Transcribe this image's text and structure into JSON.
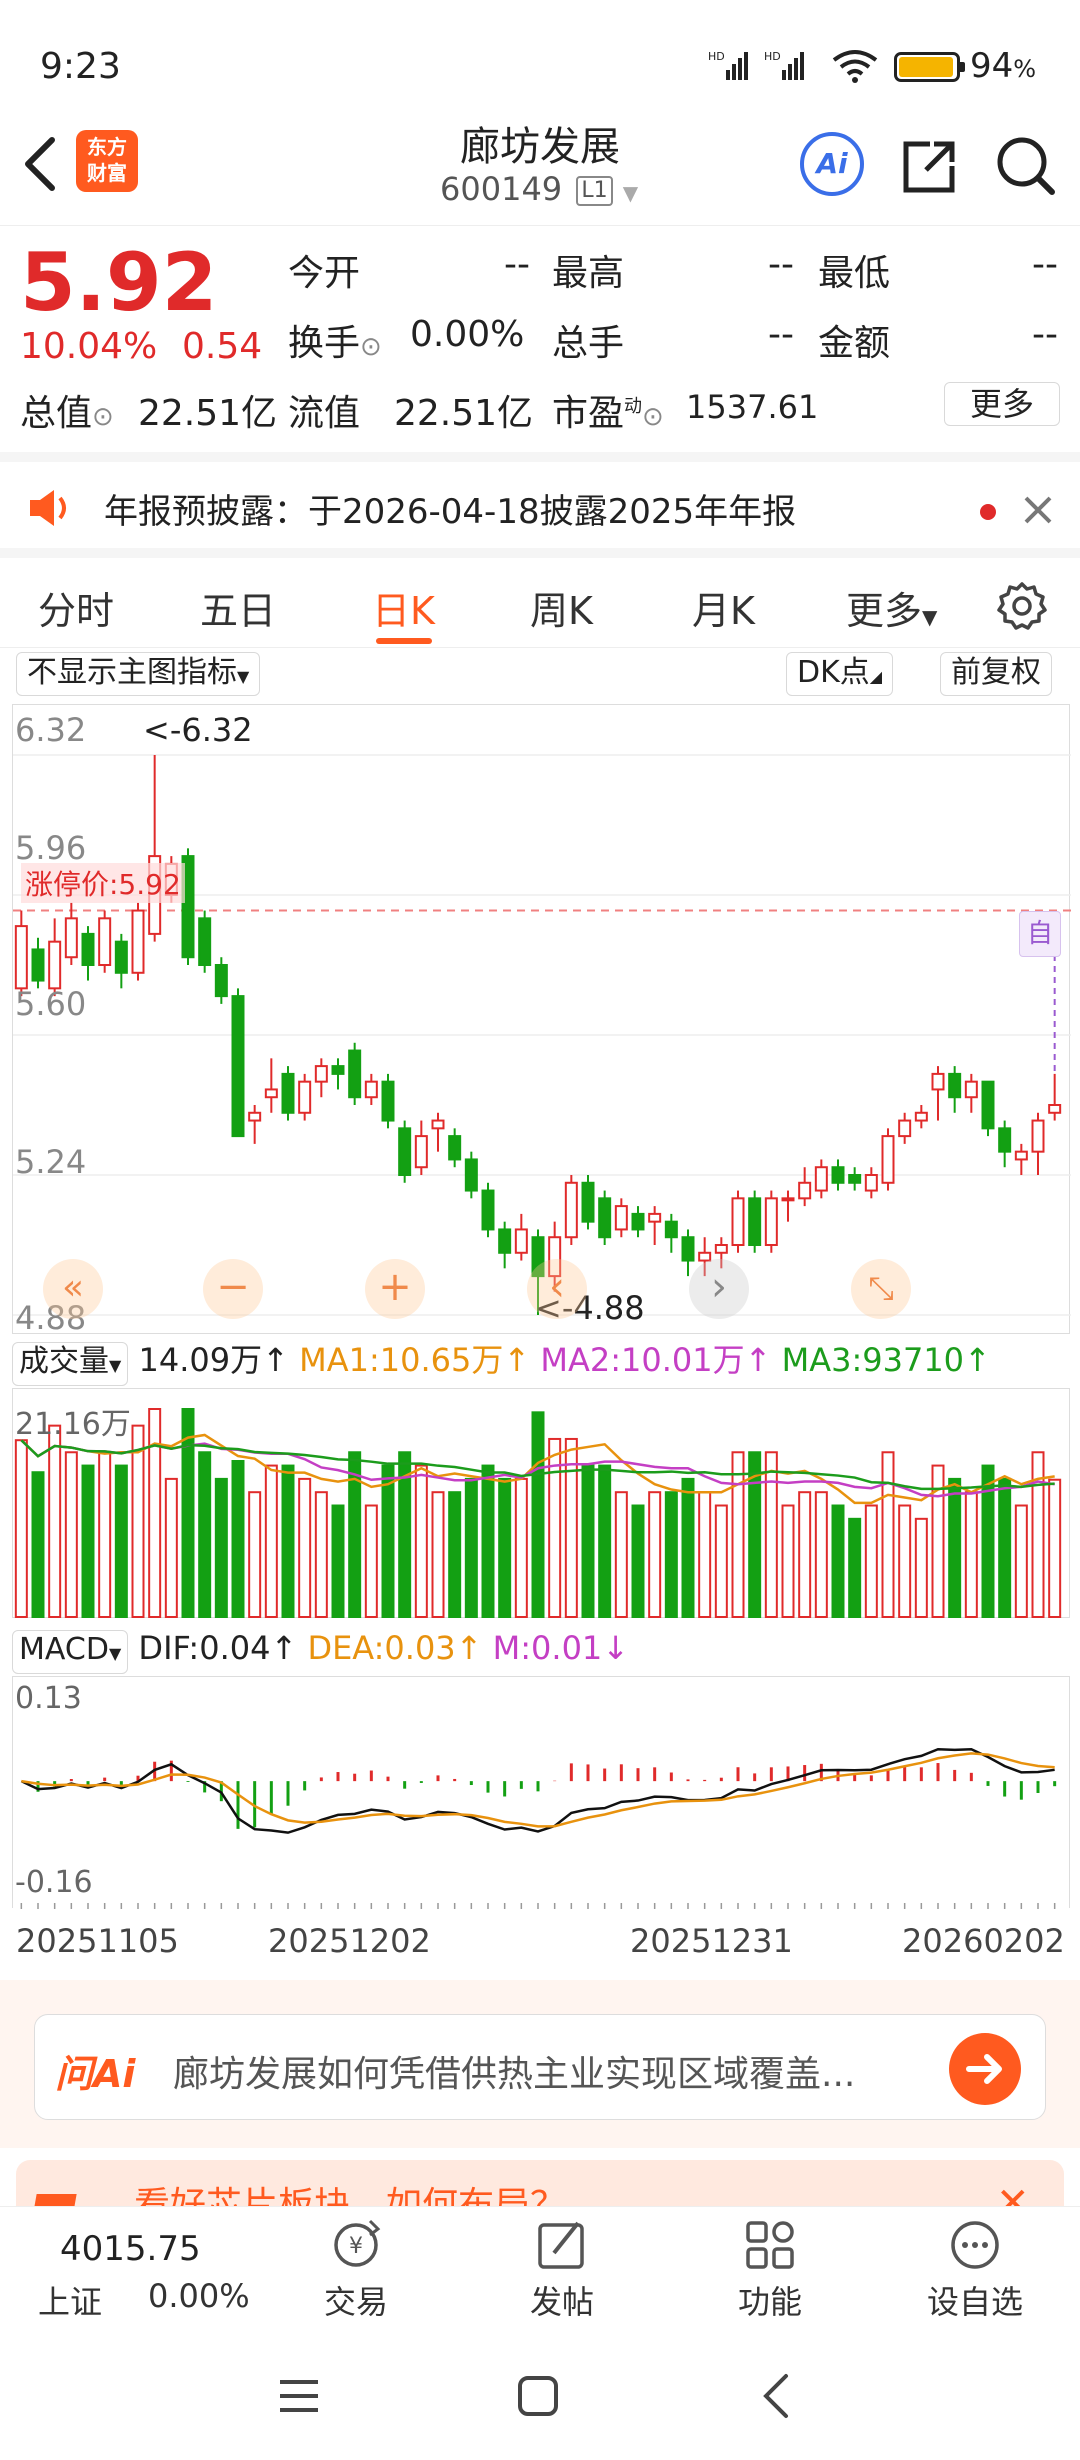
{
  "status_bar": {
    "time": "9:23",
    "battery": "94",
    "battery_pct_sign": "%"
  },
  "header": {
    "back": "‹",
    "logo_line1": "东方",
    "logo_line2": "财富",
    "title": "廊坊发展",
    "code": "600149",
    "level": "L1",
    "ai_label": "Ai"
  },
  "quote": {
    "price": "5.92",
    "change_pct": "10.04%",
    "change_abs": "0.54",
    "fields": [
      {
        "label": "今开",
        "value": "--"
      },
      {
        "label": "最高",
        "value": "--"
      },
      {
        "label": "最低",
        "value": "--"
      },
      {
        "label": "换手",
        "value": "0.00%"
      },
      {
        "label": "总手",
        "value": "--"
      },
      {
        "label": "金额",
        "value": "--"
      }
    ],
    "total_mv_label": "总值",
    "total_mv": "22.51亿",
    "float_mv_label": "流值",
    "float_mv": "22.51亿",
    "pe_label": "市盈",
    "pe_sup": "动",
    "pe_value": "1537.61",
    "more": "更多"
  },
  "notice": {
    "text": "年报预披露：于2026-04-18披露2025年年报"
  },
  "tabs": [
    {
      "label": "分时"
    },
    {
      "label": "五日"
    },
    {
      "label": "日K",
      "active": true
    },
    {
      "label": "周K"
    },
    {
      "label": "月K"
    },
    {
      "label": "更多"
    }
  ],
  "chart_toolbar": {
    "indicator": "不显示主图指标",
    "dk": "DK点",
    "adjust": "前复权"
  },
  "main_chart": {
    "y_ticks": [
      "6.32",
      "5.96",
      "5.60",
      "5.24",
      "4.88"
    ],
    "limit_label": "涨停价:5.92",
    "high_label": "<-6.32",
    "low_label": "<-4.88",
    "self_tag": "自"
  },
  "volume_panel": {
    "selector": "成交量",
    "vol": "14.09万",
    "vol_arrow": "↑",
    "ma1": "MA1:10.65万",
    "ma1_arrow": "↑",
    "ma2": "MA2:10.01万",
    "ma2_arrow": "↑",
    "ma3": "MA3:93710",
    "ma3_arrow": "↑",
    "y_max": "21.16万"
  },
  "macd_panel": {
    "selector": "MACD",
    "dif": "DIF:0.04",
    "dif_arrow": "↑",
    "dea": "DEA:0.03",
    "dea_arrow": "↑",
    "m": "M:0.01",
    "m_arrow": "↓",
    "y_top": "0.13",
    "y_bottom": "-0.16"
  },
  "dates": [
    "20251105",
    "20251202",
    "20251231",
    "20260202"
  ],
  "ask_ai": {
    "brand": "问Ai",
    "text": "廊坊发展如何凭借供热主业实现区域覆盖..."
  },
  "banner": {
    "text": "看好芯片板块，如何布局？"
  },
  "bottom_nav": {
    "index_value": "4015.75",
    "index_name": "上证",
    "index_change": "0.00%",
    "items": [
      {
        "label": "交易"
      },
      {
        "label": "发帖"
      },
      {
        "label": "功能"
      },
      {
        "label": "设自选"
      }
    ]
  },
  "colors": {
    "up": "#e02a2a",
    "down": "#13a013",
    "accent": "#ff5a00",
    "ma1": "#e8920e",
    "ma2": "#c43fc4",
    "ma3": "#1c9c1c"
  },
  "chart_data": {
    "type": "candlestick",
    "y_ticks": [
      6.32,
      5.96,
      5.6,
      5.24,
      4.88
    ],
    "ylim": [
      4.88,
      6.32
    ],
    "high": 6.32,
    "low": 4.88,
    "limit_price": 5.92,
    "dates_shown": [
      "20251105",
      "20251202",
      "20251231",
      "20260202"
    ],
    "candles": [
      {
        "o": 5.72,
        "c": 5.88,
        "h": 5.92,
        "l": 5.7
      },
      {
        "o": 5.82,
        "c": 5.74,
        "h": 5.85,
        "l": 5.72
      },
      {
        "o": 5.72,
        "c": 5.84,
        "h": 5.9,
        "l": 5.7
      },
      {
        "o": 5.8,
        "c": 5.9,
        "h": 5.94,
        "l": 5.78
      },
      {
        "o": 5.86,
        "c": 5.78,
        "h": 5.88,
        "l": 5.74
      },
      {
        "o": 5.78,
        "c": 5.9,
        "h": 5.92,
        "l": 5.76
      },
      {
        "o": 5.84,
        "c": 5.76,
        "h": 5.86,
        "l": 5.72
      },
      {
        "o": 5.76,
        "c": 5.92,
        "h": 5.94,
        "l": 5.74
      },
      {
        "o": 5.86,
        "c": 6.06,
        "h": 6.32,
        "l": 5.84
      },
      {
        "o": 5.96,
        "c": 6.04,
        "h": 6.06,
        "l": 5.94
      },
      {
        "o": 6.06,
        "c": 5.8,
        "h": 6.08,
        "l": 5.78
      },
      {
        "o": 5.9,
        "c": 5.78,
        "h": 5.92,
        "l": 5.76
      },
      {
        "o": 5.78,
        "c": 5.7,
        "h": 5.8,
        "l": 5.68
      },
      {
        "o": 5.7,
        "c": 5.34,
        "h": 5.72,
        "l": 5.34
      },
      {
        "o": 5.38,
        "c": 5.4,
        "h": 5.42,
        "l": 5.32
      },
      {
        "o": 5.44,
        "c": 5.46,
        "h": 5.54,
        "l": 5.4
      },
      {
        "o": 5.5,
        "c": 5.4,
        "h": 5.52,
        "l": 5.38
      },
      {
        "o": 5.4,
        "c": 5.48,
        "h": 5.5,
        "l": 5.38
      },
      {
        "o": 5.48,
        "c": 5.52,
        "h": 5.54,
        "l": 5.44
      },
      {
        "o": 5.52,
        "c": 5.5,
        "h": 5.54,
        "l": 5.46
      },
      {
        "o": 5.56,
        "c": 5.44,
        "h": 5.58,
        "l": 5.42
      },
      {
        "o": 5.44,
        "c": 5.48,
        "h": 5.5,
        "l": 5.42
      },
      {
        "o": 5.48,
        "c": 5.38,
        "h": 5.5,
        "l": 5.36
      },
      {
        "o": 5.36,
        "c": 5.24,
        "h": 5.38,
        "l": 5.22
      },
      {
        "o": 5.26,
        "c": 5.34,
        "h": 5.38,
        "l": 5.24
      },
      {
        "o": 5.36,
        "c": 5.38,
        "h": 5.4,
        "l": 5.3
      },
      {
        "o": 5.34,
        "c": 5.28,
        "h": 5.36,
        "l": 5.26
      },
      {
        "o": 5.28,
        "c": 5.2,
        "h": 5.3,
        "l": 5.18
      },
      {
        "o": 5.2,
        "c": 5.1,
        "h": 5.22,
        "l": 5.08
      },
      {
        "o": 5.1,
        "c": 5.04,
        "h": 5.12,
        "l": 5.0
      },
      {
        "o": 5.04,
        "c": 5.1,
        "h": 5.14,
        "l": 5.02
      },
      {
        "o": 5.08,
        "c": 4.98,
        "h": 5.1,
        "l": 4.88
      },
      {
        "o": 4.98,
        "c": 5.08,
        "h": 5.12,
        "l": 4.94
      },
      {
        "o": 5.08,
        "c": 5.22,
        "h": 5.24,
        "l": 5.06
      },
      {
        "o": 5.22,
        "c": 5.12,
        "h": 5.24,
        "l": 5.1
      },
      {
        "o": 5.18,
        "c": 5.08,
        "h": 5.2,
        "l": 5.06
      },
      {
        "o": 5.1,
        "c": 5.16,
        "h": 5.18,
        "l": 5.08
      },
      {
        "o": 5.14,
        "c": 5.1,
        "h": 5.16,
        "l": 5.08
      },
      {
        "o": 5.12,
        "c": 5.14,
        "h": 5.16,
        "l": 5.06
      },
      {
        "o": 5.12,
        "c": 5.08,
        "h": 5.14,
        "l": 5.04
      },
      {
        "o": 5.08,
        "c": 5.02,
        "h": 5.1,
        "l": 4.98
      },
      {
        "o": 5.02,
        "c": 5.04,
        "h": 5.08,
        "l": 4.98
      },
      {
        "o": 5.04,
        "c": 5.06,
        "h": 5.08,
        "l": 5.0
      },
      {
        "o": 5.06,
        "c": 5.18,
        "h": 5.2,
        "l": 5.04
      },
      {
        "o": 5.18,
        "c": 5.06,
        "h": 5.2,
        "l": 5.04
      },
      {
        "o": 5.06,
        "c": 5.18,
        "h": 5.2,
        "l": 5.04
      },
      {
        "o": 5.18,
        "c": 5.18,
        "h": 5.2,
        "l": 5.12
      },
      {
        "o": 5.18,
        "c": 5.22,
        "h": 5.26,
        "l": 5.16
      },
      {
        "o": 5.2,
        "c": 5.26,
        "h": 5.28,
        "l": 5.18
      },
      {
        "o": 5.26,
        "c": 5.22,
        "h": 5.28,
        "l": 5.2
      },
      {
        "o": 5.24,
        "c": 5.22,
        "h": 5.26,
        "l": 5.2
      },
      {
        "o": 5.2,
        "c": 5.24,
        "h": 5.26,
        "l": 5.18
      },
      {
        "o": 5.22,
        "c": 5.34,
        "h": 5.36,
        "l": 5.2
      },
      {
        "o": 5.34,
        "c": 5.38,
        "h": 5.4,
        "l": 5.32
      },
      {
        "o": 5.38,
        "c": 5.4,
        "h": 5.42,
        "l": 5.36
      },
      {
        "o": 5.46,
        "c": 5.5,
        "h": 5.52,
        "l": 5.38
      },
      {
        "o": 5.5,
        "c": 5.44,
        "h": 5.52,
        "l": 5.4
      },
      {
        "o": 5.44,
        "c": 5.48,
        "h": 5.5,
        "l": 5.4
      },
      {
        "o": 5.48,
        "c": 5.36,
        "h": 5.48,
        "l": 5.34
      },
      {
        "o": 5.36,
        "c": 5.3,
        "h": 5.38,
        "l": 5.26
      },
      {
        "o": 5.28,
        "c": 5.3,
        "h": 5.32,
        "l": 5.24
      },
      {
        "o": 5.3,
        "c": 5.38,
        "h": 5.4,
        "l": 5.24
      },
      {
        "o": 5.4,
        "c": 5.42,
        "h": 5.5,
        "l": 5.38
      }
    ],
    "volume": {
      "max": "21.16万",
      "unit": "万"
    },
    "macd": {
      "ylim": [
        -0.16,
        0.13
      ],
      "dif": 0.04,
      "dea": 0.03,
      "m": 0.01
    }
  }
}
